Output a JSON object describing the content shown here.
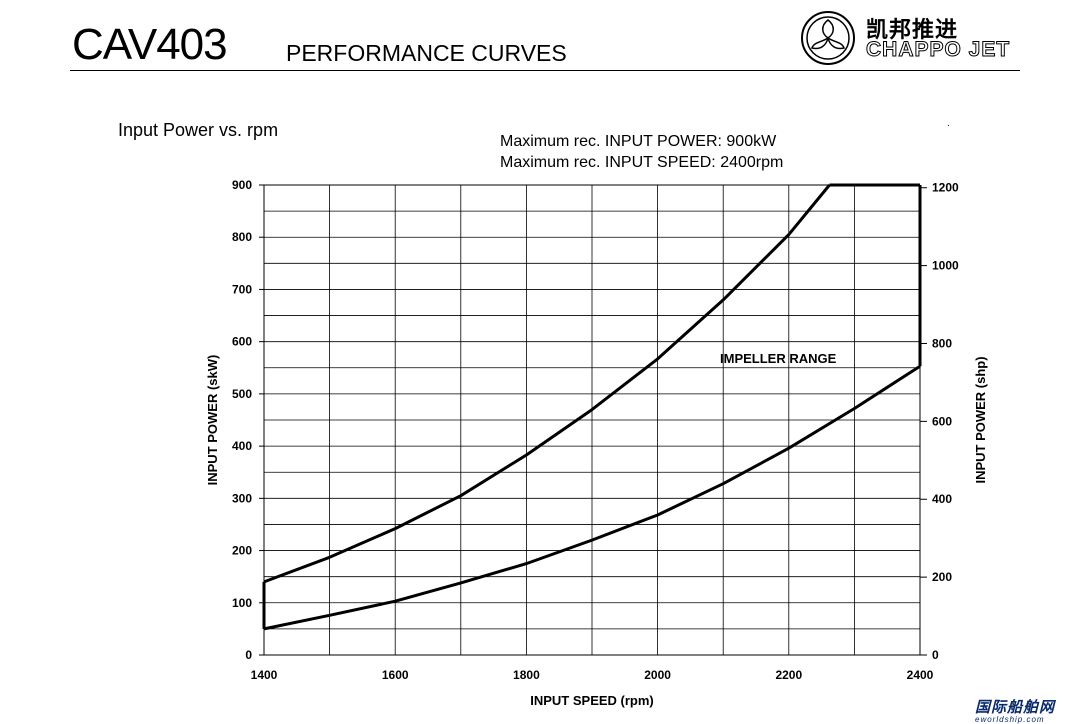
{
  "header": {
    "model": "CAV403",
    "title": "PERFORMANCE CURVES",
    "logo": {
      "name_cn": "凯邦推进",
      "name_en": "CHAPPO JET",
      "icon": "propeller-emblem-icon"
    }
  },
  "chart_heading": "Input Power vs. rpm",
  "notes": {
    "max_power": "Maximum rec. INPUT POWER: 900kW",
    "max_speed": "Maximum rec. INPUT SPEED: 2400rpm",
    "dot": "."
  },
  "watermark": {
    "cn": "国际船舶网",
    "en": "eworldship.com"
  },
  "chart_data": {
    "type": "line",
    "title": "",
    "xlabel": "INPUT SPEED (rpm)",
    "ylabel": "INPUT POWER (skW)",
    "y2label": "INPUT POWER (shp)",
    "xlim": [
      1400,
      2400
    ],
    "ylim": [
      0,
      900
    ],
    "y2lim": [
      0,
      1207
    ],
    "x_ticks": [
      1400,
      1600,
      1800,
      2000,
      2200,
      2400
    ],
    "y_ticks": [
      0,
      100,
      200,
      300,
      400,
      500,
      600,
      700,
      800,
      900
    ],
    "y2_ticks": [
      0,
      200,
      400,
      600,
      800,
      1000,
      1200
    ],
    "grid": true,
    "annotation": "IMPELLER RANGE",
    "series": [
      {
        "name": "",
        "x": [
          1400,
          1500,
          1600,
          1700,
          1800,
          1900,
          2000,
          2100,
          2200,
          2262
        ],
        "y": [
          140,
          187,
          242,
          305,
          383,
          470,
          567,
          680,
          805,
          900
        ]
      },
      {
        "name": "",
        "x": [
          1400,
          1500,
          1600,
          1700,
          1800,
          1900,
          2000,
          2100,
          2200,
          2300,
          2400
        ],
        "y": [
          50,
          76,
          103,
          138,
          175,
          220,
          268,
          328,
          396,
          472,
          553
        ]
      },
      {
        "name": "",
        "x": [
          1400,
          1400
        ],
        "y": [
          50,
          140
        ]
      },
      {
        "name": "",
        "x": [
          2262,
          2400
        ],
        "y": [
          900,
          900
        ]
      },
      {
        "name": "",
        "x": [
          2400,
          2400
        ],
        "y": [
          553,
          900
        ]
      }
    ]
  }
}
